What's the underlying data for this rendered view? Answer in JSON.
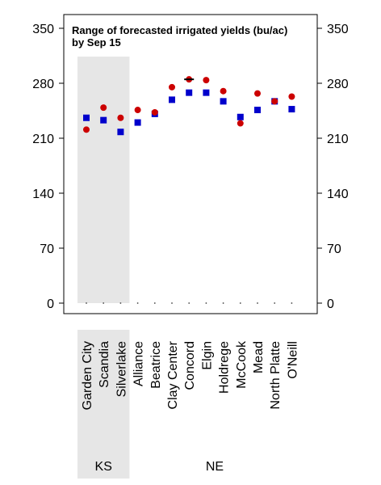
{
  "chart_data": {
    "type": "scatter",
    "title": "Range of forecasted irrigated yields (bu/ac)",
    "subtitle": "by Sep 15",
    "categories": [
      "Garden City",
      "Scandia",
      "Silverlake",
      "Alliance",
      "Beatrice",
      "Clay Center",
      "Concord",
      "Elgin",
      "Holdrege",
      "McCook",
      "Mead",
      "North Platte",
      "O'Neill"
    ],
    "groups": [
      {
        "label": "KS",
        "start": 0,
        "end": 2,
        "shaded": true
      },
      {
        "label": "NE",
        "start": 3,
        "end": 12,
        "shaded": false
      }
    ],
    "ylim": [
      0,
      350
    ],
    "yticks": [
      0,
      70,
      140,
      210,
      280,
      350
    ],
    "grid": false,
    "series": [
      {
        "marker": "square",
        "color": "#0000cc",
        "values": [
          236,
          233,
          218,
          230,
          241,
          259,
          268,
          268,
          257,
          237,
          246,
          257,
          247
        ]
      },
      {
        "marker": "circle",
        "color": "#cc0000",
        "values": [
          221,
          249,
          236,
          246,
          243,
          275,
          285,
          284,
          270,
          229,
          267,
          257,
          263
        ]
      }
    ],
    "range_markers": [
      {
        "category_index": 6,
        "value": 285,
        "color": "#000000"
      }
    ],
    "baseline_dots": [
      0,
      0,
      0,
      0,
      0,
      0,
      0,
      0,
      0,
      0,
      0,
      0,
      0
    ]
  }
}
